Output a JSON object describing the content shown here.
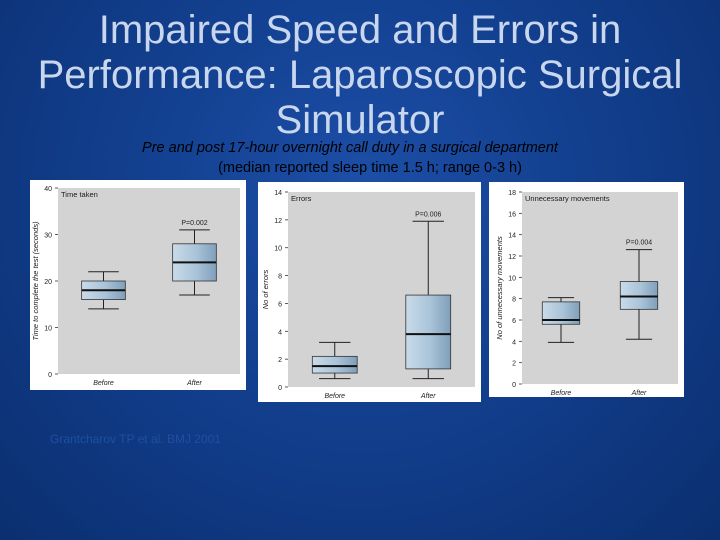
{
  "slide": {
    "title_lines": [
      "Impaired Speed and Errors in",
      "Performance: Laparoscopic Surgical",
      "Simulator"
    ],
    "subtitle_line1": "Pre and post 17-hour overnight call duty in a surgical department",
    "subtitle_line2": "(median reported sleep time 1.5 h; range 0-3 h)",
    "citation": "Grantcharov TP et al. BMJ 2001"
  },
  "colors": {
    "background": "#123f8e",
    "title": "#c9d7ee",
    "plot_bg": "#d3d3d3",
    "box_fill": "#a9c3d8"
  },
  "chart_data": [
    {
      "type": "box",
      "title": "Time taken",
      "ylabel": "Time to complete the test (seconds)",
      "ylim": [
        0,
        40
      ],
      "yticks": [
        0,
        10,
        20,
        30,
        40
      ],
      "grid": false,
      "categories": [
        "Before",
        "After"
      ],
      "boxes": [
        {
          "min": 14,
          "q1": 16,
          "median": 18,
          "q3": 20,
          "max": 22
        },
        {
          "min": 17,
          "q1": 20,
          "median": 24,
          "q3": 28,
          "max": 31
        }
      ],
      "annotation": "P=0.002"
    },
    {
      "type": "box",
      "title": "Errors",
      "ylabel": "No of errors",
      "ylim": [
        0,
        14
      ],
      "yticks": [
        0,
        2,
        4,
        6,
        8,
        10,
        12,
        14
      ],
      "grid": false,
      "categories": [
        "Before",
        "After"
      ],
      "boxes": [
        {
          "min": 0.6,
          "q1": 1.0,
          "median": 1.5,
          "q3": 2.2,
          "max": 3.2
        },
        {
          "min": 0.6,
          "q1": 1.3,
          "median": 3.8,
          "q3": 6.6,
          "max": 11.9
        }
      ],
      "annotation": "P=0.006"
    },
    {
      "type": "box",
      "title": "Unnecessary movements",
      "ylabel": "No of unnecessary movements",
      "ylim": [
        0,
        18
      ],
      "yticks": [
        0,
        2,
        4,
        6,
        8,
        10,
        12,
        14,
        16,
        18
      ],
      "grid": false,
      "categories": [
        "Before",
        "After"
      ],
      "boxes": [
        {
          "min": 3.9,
          "q1": 5.6,
          "median": 6.0,
          "q3": 7.7,
          "max": 8.1
        },
        {
          "min": 4.2,
          "q1": 7.0,
          "median": 8.2,
          "q3": 9.6,
          "max": 12.6
        }
      ],
      "annotation": "P=0.004"
    }
  ]
}
